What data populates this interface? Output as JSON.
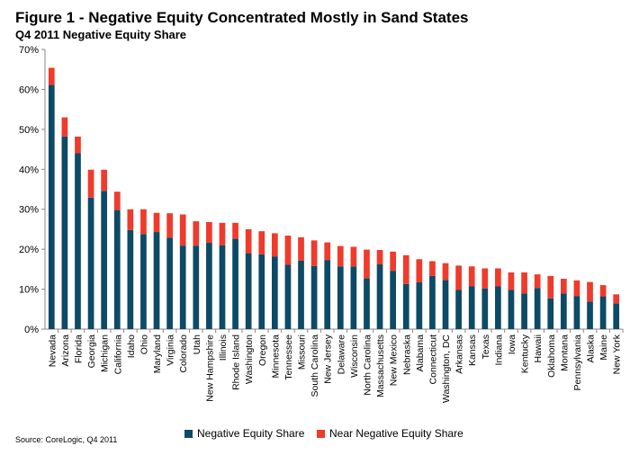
{
  "chart_data": {
    "type": "bar",
    "stacked": true,
    "title": "Figure 1 - Negative Equity Concentrated Mostly in Sand States",
    "subtitle": "Q4 2011 Negative Equity Share",
    "source": "Source: CoreLogic, Q4 2011",
    "ylim": [
      0,
      70
    ],
    "yticks": [
      "0%",
      "10%",
      "20%",
      "30%",
      "40%",
      "50%",
      "60%",
      "70%"
    ],
    "legend_position": "bottom",
    "colors": {
      "negative": "#0d4a66",
      "near": "#ee3b2c"
    },
    "categories": [
      "Nevada",
      "Arizona",
      "Florida",
      "Georgia",
      "Michigan",
      "California",
      "Idaho",
      "Ohio",
      "Maryland",
      "Virginia",
      "Colorado",
      "Utah",
      "New Hampshire",
      "Illinois",
      "Rhode Island",
      "Washington",
      "Oregon",
      "Minnesota",
      "Tennessee",
      "Missouri",
      "South Carolina",
      "New Jersey",
      "Delaware",
      "Wisconsin",
      "North Carolina",
      "Massachusetts",
      "New Mexico",
      "Nebraska",
      "Alabama",
      "Connecticut",
      "Washington, DC",
      "Arkansas",
      "Kansas",
      "Texas",
      "Indiana",
      "Iowa",
      "Kentucky",
      "Hawaii",
      "Oklahoma",
      "Montana",
      "Pennsylvania",
      "Alaska",
      "Maine",
      "New York"
    ],
    "series": [
      {
        "name": "Negative Equity Share",
        "values": [
          61.1,
          48.2,
          44.0,
          32.9,
          34.6,
          29.8,
          24.8,
          23.8,
          24.3,
          22.9,
          20.9,
          20.9,
          21.6,
          21.0,
          22.6,
          19.0,
          18.7,
          18.2,
          16.1,
          17.1,
          15.8,
          17.3,
          15.7,
          15.7,
          12.7,
          16.2,
          14.6,
          11.3,
          11.7,
          13.3,
          12.3,
          9.8,
          10.7,
          10.2,
          10.7,
          9.8,
          8.9,
          10.3,
          7.7,
          8.9,
          8.3,
          6.9,
          8.2,
          6.4
        ]
      },
      {
        "name": "Near Negative Equity Share",
        "values": [
          4.3,
          4.8,
          4.2,
          7.0,
          5.3,
          4.6,
          5.2,
          6.2,
          4.8,
          6.1,
          7.8,
          6.1,
          5.2,
          5.6,
          4.0,
          6.0,
          5.8,
          5.8,
          7.3,
          5.9,
          6.4,
          4.4,
          5.1,
          4.9,
          7.2,
          3.6,
          4.8,
          7.2,
          5.8,
          3.7,
          4.2,
          6.1,
          5.0,
          5.0,
          4.5,
          4.4,
          5.3,
          3.4,
          5.6,
          3.7,
          3.9,
          4.9,
          2.8,
          2.3
        ]
      }
    ]
  }
}
